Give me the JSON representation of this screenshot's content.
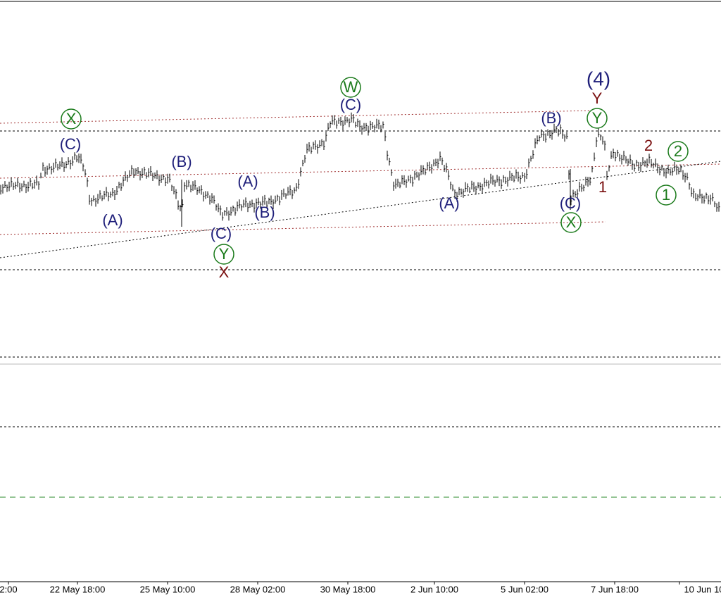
{
  "time_axis": {
    "labels": [
      "2:00",
      "22 May 18:00",
      "25 May 10:00",
      "28 May 02:00",
      "30 May 18:00",
      "2 Jun 10:00",
      "5 Jun 02:00",
      "7 Jun 18:00",
      "10 Jun 10"
    ]
  },
  "wave_labels": [
    {
      "text": "(C)"
    },
    {
      "text": "X"
    },
    {
      "text": "(A)"
    },
    {
      "text": "(B)"
    },
    {
      "text": "(A)"
    },
    {
      "text": "(B)"
    },
    {
      "text": "(C)"
    },
    {
      "text": "Y"
    },
    {
      "text": "X"
    },
    {
      "text": "W"
    },
    {
      "text": "(C)"
    },
    {
      "text": "(A)"
    },
    {
      "text": "(B)"
    },
    {
      "text": "(C)"
    },
    {
      "text": "X"
    },
    {
      "text": "(4)"
    },
    {
      "text": "Y"
    },
    {
      "text": "Y"
    },
    {
      "text": "2"
    },
    {
      "text": "1"
    },
    {
      "text": "2"
    },
    {
      "text": "1"
    }
  ]
}
